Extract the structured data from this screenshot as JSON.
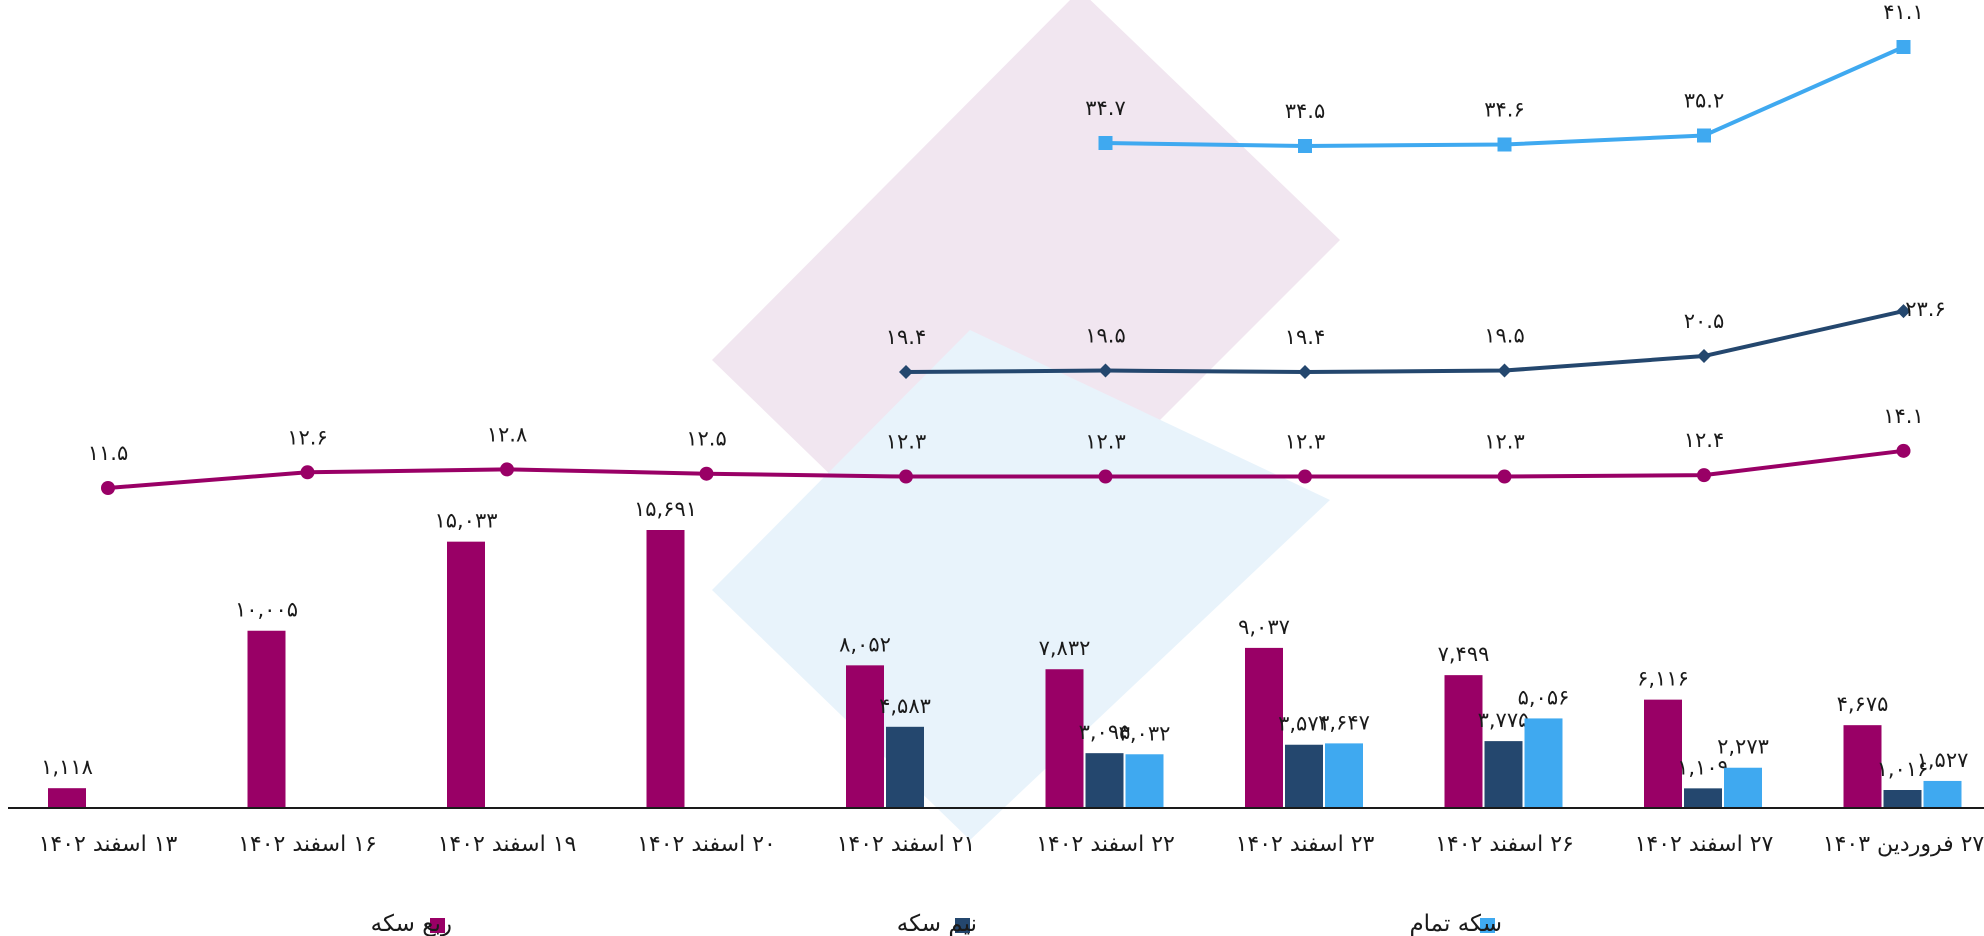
{
  "chart_data": {
    "type": "bar+line",
    "categories": [
      "۱۳ اسفند ۱۴۰۲",
      "۱۶ اسفند ۱۴۰۲",
      "۱۹ اسفند ۱۴۰۲",
      "۲۰ اسفند ۱۴۰۲",
      "۲۱ اسفند ۱۴۰۲",
      "۲۲ اسفند ۱۴۰۲",
      "۲۳ اسفند ۱۴۰۲",
      "۲۶ اسفند ۱۴۰۲",
      "۲۷ اسفند ۱۴۰۲",
      "۲۷ فروردین ۱۴۰۳"
    ],
    "bar_series": [
      {
        "name": "ربع سکه",
        "color": "#990066",
        "values": [
          1118,
          10005,
          15033,
          15691,
          8052,
          7832,
          9037,
          7499,
          6116,
          4675
        ],
        "labels": [
          "۱,۱۱۸",
          "۱۰,۰۰۵",
          "۱۵,۰۳۳",
          "۱۵,۶۹۱",
          "۸,۰۵۲",
          "۷,۸۳۲",
          "۹,۰۳۷",
          "۷,۴۹۹",
          "۶,۱۱۶",
          "۴,۶۷۵"
        ]
      },
      {
        "name": "نیم سکه",
        "color": "#24476e",
        "values": [
          null,
          null,
          null,
          null,
          4583,
          3095,
          3571,
          3775,
          1109,
          1016
        ],
        "labels": [
          "",
          "",
          "",
          "",
          "۴,۵۸۳",
          "۳,۰۹۵",
          "۳,۵۷۱",
          "۳,۷۷۵",
          "۱,۱۰۹",
          "۱,۰۱۶"
        ]
      },
      {
        "name": "سکه تمام",
        "color": "#3fa9f0",
        "values": [
          null,
          null,
          null,
          null,
          null,
          3032,
          3647,
          5056,
          2273,
          1527
        ],
        "labels": [
          "",
          "",
          "",
          "",
          "",
          "۳,۰۳۲",
          "۳,۶۴۷",
          "۵,۰۵۶",
          "۲,۲۷۳",
          "۱,۵۲۷"
        ]
      }
    ],
    "line_series": [
      {
        "name": "ربع سکه",
        "color": "#990066",
        "marker": "circle",
        "values": [
          11.5,
          12.6,
          12.8,
          12.5,
          12.3,
          12.3,
          12.3,
          12.3,
          12.4,
          14.1
        ],
        "labels": [
          "۱۱.۵",
          "۱۲.۶",
          "۱۲.۸",
          "۱۲.۵",
          "۱۲.۳",
          "۱۲.۳",
          "۱۲.۳",
          "۱۲.۳",
          "۱۲.۴",
          "۱۴.۱"
        ]
      },
      {
        "name": "نیم سکه",
        "color": "#24476e",
        "marker": "diamond",
        "values": [
          null,
          null,
          null,
          null,
          19.4,
          19.5,
          19.4,
          19.5,
          20.5,
          23.6
        ],
        "labels": [
          "",
          "",
          "",
          "",
          "۱۹.۴",
          "۱۹.۵",
          "۱۹.۴",
          "۱۹.۵",
          "۲۰.۵",
          "۲۳.۶"
        ]
      },
      {
        "name": "سکه تمام",
        "color": "#3fa9f0",
        "marker": "square",
        "values": [
          null,
          null,
          null,
          null,
          null,
          34.7,
          34.5,
          34.6,
          35.2,
          41.1
        ],
        "labels": [
          "",
          "",
          "",
          "",
          "",
          "۳۴.۷",
          "۳۴.۵",
          "۳۴.۶",
          "۳۵.۲",
          "۴۱.۱"
        ]
      }
    ],
    "bar_ylim": [
      0,
      17500
    ],
    "legend": {
      "position": "bottom",
      "items": [
        "ربع سکه",
        "نیم سکه",
        "سکه تمام"
      ]
    },
    "grid": false
  }
}
